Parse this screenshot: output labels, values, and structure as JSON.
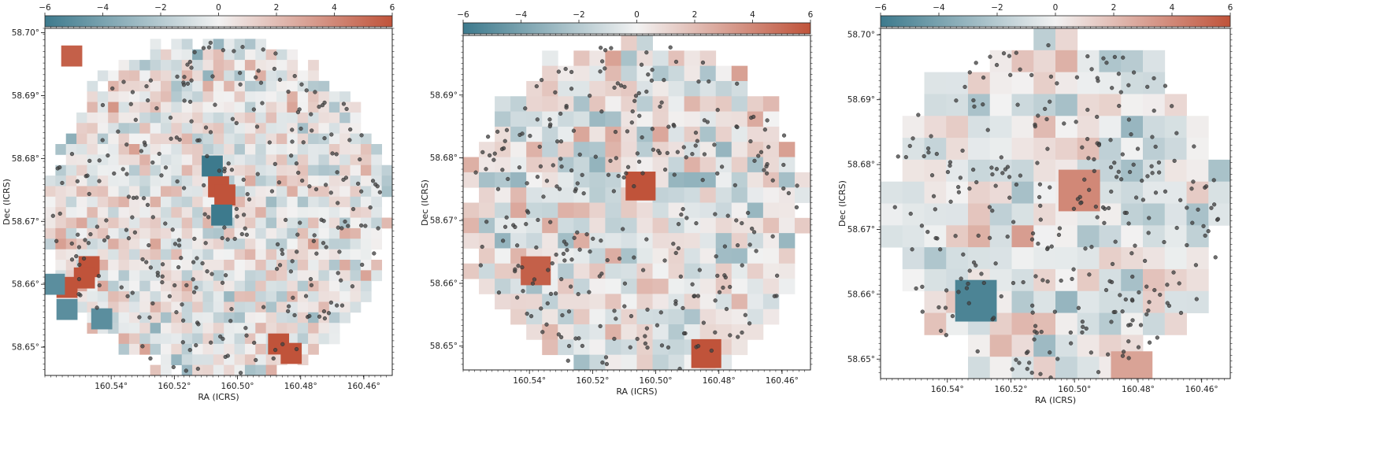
{
  "figure": {
    "colorbar": {
      "range": [
        -6,
        6
      ],
      "ticks": [
        "−6",
        "−4",
        "−2",
        "0",
        "2",
        "4",
        "6"
      ],
      "colors": {
        "negative": "#3d7a8d",
        "zero": "#f2f2f2",
        "positive": "#c0533a"
      }
    },
    "point_color": "#444444"
  },
  "chart_data": [
    {
      "type": "heatmap",
      "xlabel": "RA (ICRS)",
      "ylabel": "Dec (ICRS)",
      "xlim": [
        160.561,
        160.451
      ],
      "ylim": [
        58.6455,
        58.7007
      ],
      "xticks": [
        160.54,
        160.52,
        160.5,
        160.48,
        160.46
      ],
      "xtick_labels": [
        "160.54°",
        "160.52°",
        "160.50°",
        "160.48°",
        "160.46°"
      ],
      "yticks": [
        58.65,
        58.66,
        58.67,
        58.68,
        58.69,
        58.7
      ],
      "ytick_labels": [
        "58.65°",
        "58.66°",
        "58.67°",
        "58.68°",
        "58.69°",
        "58.70°"
      ],
      "grid": "33x33 pixels inside a circular footprint (center 160.506°, 58.673°, radius ~0.0275°)",
      "highlight_cells": [
        {
          "ra": 160.5525,
          "dec": 58.6963,
          "value": 5.5
        },
        {
          "ra": 160.547,
          "dec": 58.6628,
          "value": 6
        },
        {
          "ra": 160.5485,
          "dec": 58.661,
          "value": 6
        },
        {
          "ra": 160.554,
          "dec": 58.6595,
          "value": 6
        },
        {
          "ra": 160.558,
          "dec": 58.66,
          "value": -5
        },
        {
          "ra": 160.554,
          "dec": 58.656,
          "value": -5
        },
        {
          "ra": 160.543,
          "dec": 58.6545,
          "value": -5
        },
        {
          "ra": 160.508,
          "dec": 58.6788,
          "value": -6
        },
        {
          "ra": 160.506,
          "dec": 58.6755,
          "value": 6
        },
        {
          "ra": 160.504,
          "dec": 58.6742,
          "value": 6
        },
        {
          "ra": 160.505,
          "dec": 58.671,
          "value": -6
        },
        {
          "ra": 160.487,
          "dec": 58.6505,
          "value": 6
        },
        {
          "ra": 160.483,
          "dec": 58.649,
          "value": 6
        }
      ],
      "points_count": 300
    },
    {
      "type": "heatmap",
      "xlabel": "RA (ICRS)",
      "ylabel": "Dec (ICRS)",
      "xlim": [
        160.561,
        160.451
      ],
      "ylim": [
        58.6462,
        58.6995
      ],
      "xticks": [
        160.54,
        160.52,
        160.5,
        160.48,
        160.46
      ],
      "xtick_labels": [
        "160.54°",
        "160.52°",
        "160.50°",
        "160.48°",
        "160.46°"
      ],
      "yticks": [
        58.65,
        58.66,
        58.67,
        58.68,
        58.69
      ],
      "ytick_labels": [
        "58.65°",
        "58.66°",
        "58.67°",
        "58.68°",
        "58.69°"
      ],
      "grid": "22x22 pixels inside a circular footprint",
      "highlight_cells": [
        {
          "ra": 160.5048,
          "dec": 58.6755,
          "value": 6
        },
        {
          "ra": 160.538,
          "dec": 58.662,
          "value": 5.5
        },
        {
          "ra": 160.484,
          "dec": 58.6488,
          "value": 6
        }
      ],
      "points_count": 300
    },
    {
      "type": "heatmap",
      "xlabel": "RA (ICRS)",
      "ylabel": "Dec (ICRS)",
      "xlim": [
        160.561,
        160.451
      ],
      "ylim": [
        58.647,
        58.701
      ],
      "xticks": [
        160.54,
        160.52,
        160.5,
        160.48,
        160.46
      ],
      "xtick_labels": [
        "160.54°",
        "160.52°",
        "160.50°",
        "160.48°",
        "160.46°"
      ],
      "yticks": [
        58.65,
        58.66,
        58.67,
        58.68,
        58.69,
        58.7
      ],
      "ytick_labels": [
        "58.65°",
        "58.66°",
        "58.67°",
        "58.68°",
        "58.69°",
        "58.70°"
      ],
      "grid": "16x16 pixels inside a circular footprint",
      "highlight_cells": [
        {
          "ra": 160.531,
          "dec": 58.659,
          "value": -5.5
        },
        {
          "ra": 160.4985,
          "dec": 58.676,
          "value": 4
        },
        {
          "ra": 160.482,
          "dec": 58.648,
          "value": 3
        }
      ],
      "points_count": 300
    }
  ]
}
